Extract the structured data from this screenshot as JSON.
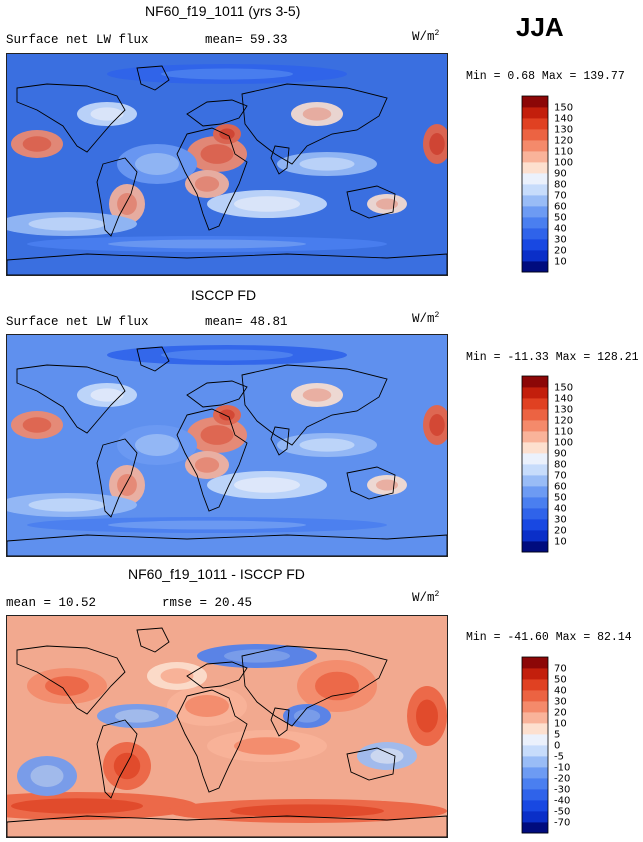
{
  "season": "JJA",
  "units": "W/m",
  "units_sup": "2",
  "panels": [
    {
      "title": "NF60_f19_1011 (yrs 3-5)",
      "variable": "Surface net LW flux",
      "stat_left": "mean=  59.33",
      "stat_right": "",
      "minmax": "Min =   0.68 Max = 139.77",
      "base_color": "#3a6fe0"
    },
    {
      "title": "ISCCP FD",
      "variable": "Surface net LW flux",
      "stat_left": "mean=  48.81",
      "stat_right": "",
      "minmax": "Min = -11.33 Max = 128.21",
      "base_color": "#5f90ee"
    },
    {
      "title": "NF60_f19_1011 - ISCCP FD",
      "variable": "mean =  10.52",
      "stat_left": "rmse =  20.45",
      "stat_right": "",
      "minmax": "Min = -41.60 Max =  82.14",
      "base_color": "#f2a98f"
    }
  ],
  "chart_data": [
    {
      "type": "heatmap",
      "title": "NF60_f19_1011 (yrs 3-5)",
      "subtitle": "Surface net LW flux",
      "mean": 59.33,
      "min": 0.68,
      "max": 139.77,
      "units": "W/m2",
      "colorbar_levels": [
        10,
        20,
        30,
        40,
        50,
        60,
        70,
        80,
        90,
        100,
        110,
        120,
        130,
        140,
        150
      ],
      "colorbar_colors": [
        "#000c7e",
        "#0a2fc8",
        "#1848e2",
        "#2f63ea",
        "#4a7ff0",
        "#6d9bf3",
        "#99bcf6",
        "#c7dcfb",
        "#ebf1fc",
        "#fde0cf",
        "#f9b39a",
        "#f48a6b",
        "#ec6342",
        "#e04122",
        "#c31f0c",
        "#8c0707"
      ]
    },
    {
      "type": "heatmap",
      "title": "ISCCP FD",
      "subtitle": "Surface net LW flux",
      "mean": 48.81,
      "min": -11.33,
      "max": 128.21,
      "units": "W/m2",
      "colorbar_levels": [
        10,
        20,
        30,
        40,
        50,
        60,
        70,
        80,
        90,
        100,
        110,
        120,
        130,
        140,
        150
      ],
      "colorbar_colors": [
        "#000c7e",
        "#0a2fc8",
        "#1848e2",
        "#2f63ea",
        "#4a7ff0",
        "#6d9bf3",
        "#99bcf6",
        "#c7dcfb",
        "#ebf1fc",
        "#fde0cf",
        "#f9b39a",
        "#f48a6b",
        "#ec6342",
        "#e04122",
        "#c31f0c",
        "#8c0707"
      ]
    },
    {
      "type": "heatmap",
      "title": "NF60_f19_1011 - ISCCP FD",
      "mean": 10.52,
      "rmse": 20.45,
      "min": -41.6,
      "max": 82.14,
      "units": "W/m2",
      "colorbar_levels": [
        -70,
        -50,
        -40,
        -30,
        -20,
        -10,
        -5,
        0,
        5,
        10,
        20,
        30,
        40,
        50,
        70
      ],
      "colorbar_colors": [
        "#000c7e",
        "#0a2fc8",
        "#1848e2",
        "#2f63ea",
        "#4a7ff0",
        "#6d9bf3",
        "#99bcf6",
        "#c7dcfb",
        "#ebf1fc",
        "#fde0cf",
        "#f9b39a",
        "#f48a6b",
        "#ec6342",
        "#e04122",
        "#c31f0c",
        "#8c0707"
      ]
    }
  ]
}
